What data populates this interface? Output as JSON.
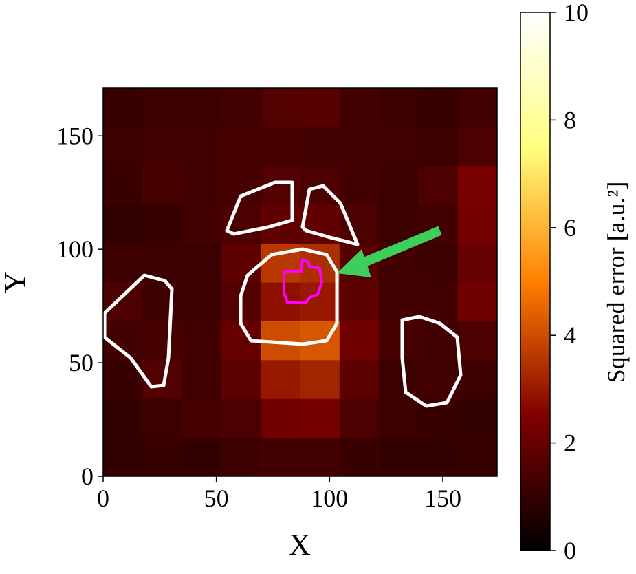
{
  "chart_data": {
    "type": "heatmap",
    "xlabel": "X",
    "ylabel": "Y",
    "xlim": [
      0,
      174
    ],
    "ylim": [
      0,
      171
    ],
    "xticks": [
      0,
      50,
      100,
      150
    ],
    "yticks": [
      0,
      50,
      100,
      150
    ],
    "colormap": "afmhot",
    "values": [
      [
        1.0,
        1.1,
        1.0,
        1.2,
        1.3,
        1.3,
        1.1,
        1.0,
        1.0,
        1.1
      ],
      [
        1.0,
        1.2,
        1.4,
        1.5,
        2.2,
        2.3,
        1.5,
        1.2,
        1.1,
        1.0
      ],
      [
        1.1,
        1.6,
        1.3,
        1.8,
        3.0,
        3.2,
        1.8,
        1.2,
        1.3,
        1.2
      ],
      [
        1.3,
        1.4,
        1.3,
        2.0,
        4.0,
        4.2,
        2.2,
        1.4,
        1.3,
        1.5
      ],
      [
        1.5,
        1.2,
        1.2,
        1.6,
        2.8,
        3.0,
        1.8,
        1.3,
        1.3,
        2.2
      ],
      [
        1.2,
        1.2,
        1.2,
        1.8,
        3.6,
        3.4,
        1.7,
        1.3,
        1.2,
        2.0
      ],
      [
        1.0,
        1.1,
        1.3,
        1.5,
        1.9,
        1.9,
        1.5,
        1.2,
        1.3,
        2.3
      ],
      [
        1.1,
        1.4,
        1.3,
        1.4,
        1.6,
        1.5,
        1.3,
        1.2,
        1.5,
        2.4
      ],
      [
        1.2,
        1.3,
        1.3,
        1.4,
        1.4,
        1.3,
        1.3,
        1.3,
        1.2,
        1.5
      ],
      [
        1.1,
        1.2,
        1.2,
        1.3,
        1.6,
        1.7,
        1.3,
        1.2,
        1.1,
        1.3
      ]
    ],
    "colorbar": {
      "label": "Squared error [a.u.²]",
      "lim": [
        0,
        10
      ],
      "ticks": [
        0,
        2,
        4,
        6,
        8,
        10
      ]
    }
  }
}
